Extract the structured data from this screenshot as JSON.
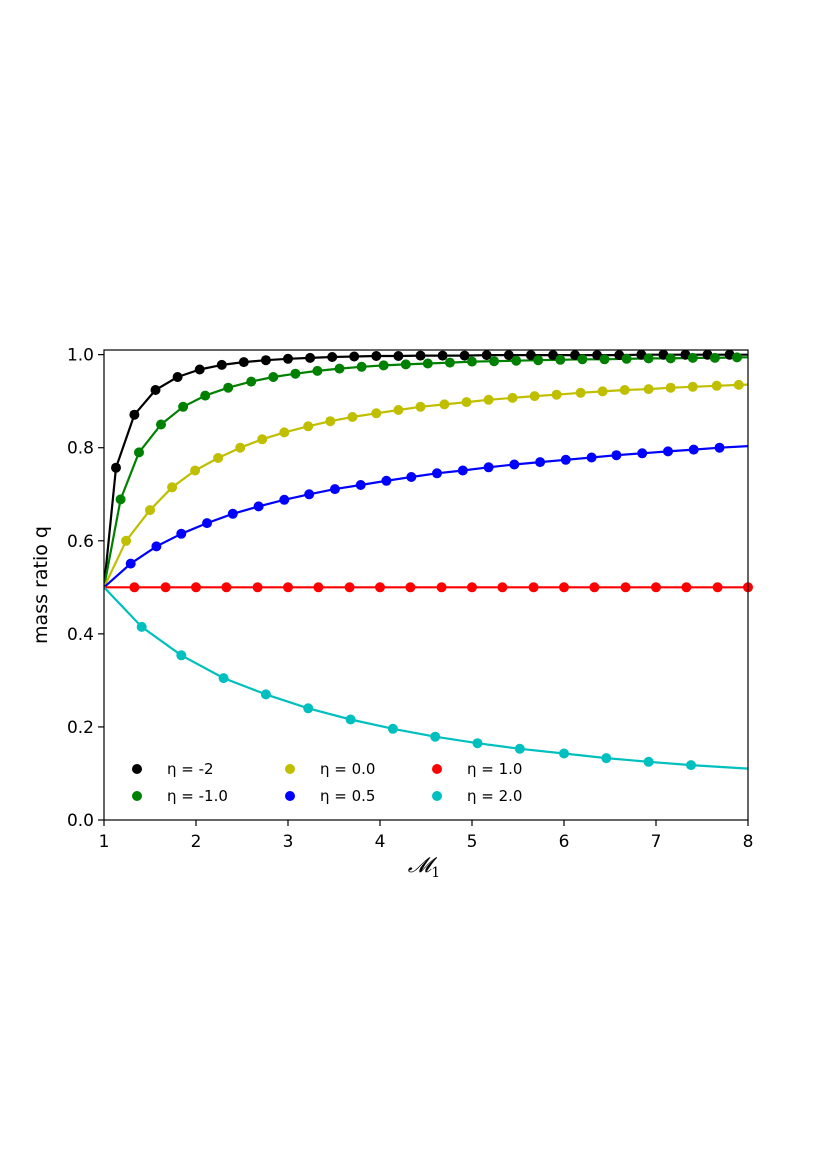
{
  "chart_data": {
    "type": "line",
    "xlabel": "𝓜",
    "xlabel_subscript": "1",
    "ylabel": "mass ratio q",
    "xlim": [
      1,
      8
    ],
    "ylim": [
      0,
      1.01
    ],
    "xticks": [
      "1",
      "2",
      "3",
      "4",
      "5",
      "6",
      "7",
      "8"
    ],
    "yticks": [
      "0.0",
      "0.2",
      "0.4",
      "0.6",
      "0.8",
      "1.0"
    ],
    "grid": false,
    "legend_position": "lower-left",
    "legend_columns": 3,
    "marker_x": [
      1.0,
      1.25,
      1.5,
      1.75,
      2.0,
      2.25,
      2.5,
      2.75,
      3.0,
      3.25,
      3.5,
      3.75,
      4.0,
      4.25,
      4.5,
      4.75,
      5.0,
      5.25,
      5.5,
      5.75,
      6.0,
      6.25,
      6.5,
      6.75,
      7.0,
      7.25,
      7.5,
      7.75,
      8.0
    ],
    "series": [
      {
        "name": "η = -2",
        "legend_symbol": "η",
        "legend_value": "-2",
        "color": "#000000",
        "marker_x": [
          1.13,
          1.33,
          1.56,
          1.8,
          2.04,
          2.28,
          2.52,
          2.76,
          3.0,
          3.24,
          3.48,
          3.72,
          3.96,
          4.2,
          4.44,
          4.68,
          4.92,
          5.16,
          5.4,
          5.64,
          5.88,
          6.12,
          6.36,
          6.6,
          6.84,
          7.08,
          7.32,
          7.56,
          7.8
        ],
        "marker_y": [
          0.757,
          0.871,
          0.924,
          0.952,
          0.968,
          0.978,
          0.984,
          0.988,
          0.991,
          0.993,
          0.995,
          0.996,
          0.997,
          0.997,
          0.998,
          0.998,
          0.998,
          0.999,
          0.999,
          0.999,
          0.999,
          0.999,
          0.999,
          0.999,
          1.0,
          1.0,
          1.0,
          1.0,
          1.0
        ]
      },
      {
        "name": "η = -1.0",
        "legend_symbol": "η",
        "legend_value": "-1.0",
        "color": "#008000",
        "marker_x": [
          1.18,
          1.38,
          1.62,
          1.86,
          2.1,
          2.35,
          2.6,
          2.84,
          3.08,
          3.32,
          3.56,
          3.8,
          4.04,
          4.28,
          4.52,
          4.76,
          5.0,
          5.24,
          5.48,
          5.72,
          5.96,
          6.2,
          6.44,
          6.68,
          6.92,
          7.16,
          7.4,
          7.64,
          7.88
        ],
        "marker_y": [
          0.689,
          0.79,
          0.85,
          0.888,
          0.912,
          0.929,
          0.942,
          0.952,
          0.959,
          0.965,
          0.97,
          0.974,
          0.977,
          0.979,
          0.981,
          0.983,
          0.985,
          0.986,
          0.987,
          0.988,
          0.989,
          0.99,
          0.99,
          0.991,
          0.992,
          0.992,
          0.993,
          0.993,
          0.994
        ]
      },
      {
        "name": "η = 0.0",
        "legend_symbol": "η",
        "legend_value": "0.0",
        "color": "#bfbf00",
        "marker_x": [
          1.24,
          1.5,
          1.74,
          1.99,
          2.24,
          2.48,
          2.72,
          2.96,
          3.22,
          3.46,
          3.7,
          3.96,
          4.2,
          4.44,
          4.7,
          4.94,
          5.18,
          5.44,
          5.68,
          5.92,
          6.18,
          6.42,
          6.66,
          6.92,
          7.16,
          7.4,
          7.66,
          7.9
        ],
        "marker_y": [
          0.6,
          0.666,
          0.715,
          0.751,
          0.778,
          0.8,
          0.818,
          0.833,
          0.846,
          0.857,
          0.866,
          0.874,
          0.881,
          0.888,
          0.893,
          0.898,
          0.903,
          0.907,
          0.911,
          0.914,
          0.918,
          0.921,
          0.924,
          0.926,
          0.929,
          0.931,
          0.933,
          0.935
        ]
      },
      {
        "name": "η = 0.5",
        "legend_symbol": "η",
        "legend_value": "0.5",
        "color": "#0000ff",
        "marker_x": [
          1.29,
          1.57,
          1.84,
          2.12,
          2.4,
          2.68,
          2.96,
          3.23,
          3.51,
          3.79,
          4.07,
          4.34,
          4.62,
          4.9,
          5.18,
          5.46,
          5.74,
          6.02,
          6.3,
          6.57,
          6.85,
          7.13,
          7.41,
          7.69
        ],
        "marker_y": [
          0.551,
          0.588,
          0.615,
          0.638,
          0.658,
          0.674,
          0.688,
          0.7,
          0.711,
          0.72,
          0.729,
          0.737,
          0.745,
          0.751,
          0.758,
          0.764,
          0.769,
          0.774,
          0.779,
          0.784,
          0.788,
          0.792,
          0.796,
          0.8
        ]
      },
      {
        "name": "η = 1.0",
        "legend_symbol": "η",
        "legend_value": "1.0",
        "color": "#ff0000",
        "marker_x": [
          1.33,
          1.67,
          2.0,
          2.33,
          2.67,
          3.0,
          3.33,
          3.67,
          4.0,
          4.33,
          4.67,
          5.0,
          5.33,
          5.67,
          6.0,
          6.33,
          6.67,
          7.0,
          7.33,
          7.67,
          8.0
        ],
        "marker_y": [
          0.5,
          0.5,
          0.5,
          0.5,
          0.5,
          0.5,
          0.5,
          0.5,
          0.5,
          0.5,
          0.5,
          0.5,
          0.5,
          0.5,
          0.5,
          0.5,
          0.5,
          0.5,
          0.5,
          0.5,
          0.5
        ]
      },
      {
        "name": "η = 2.0",
        "legend_symbol": "η",
        "legend_value": "2.0",
        "color": "#00bfbf",
        "marker_x": [
          1.41,
          1.84,
          2.3,
          2.76,
          3.22,
          3.68,
          4.14,
          4.6,
          5.06,
          5.52,
          6.0,
          6.46,
          6.92,
          7.38
        ],
        "marker_y": [
          0.415,
          0.354,
          0.305,
          0.27,
          0.24,
          0.216,
          0.196,
          0.179,
          0.165,
          0.153,
          0.143,
          0.133,
          0.125,
          0.118
        ]
      }
    ]
  }
}
